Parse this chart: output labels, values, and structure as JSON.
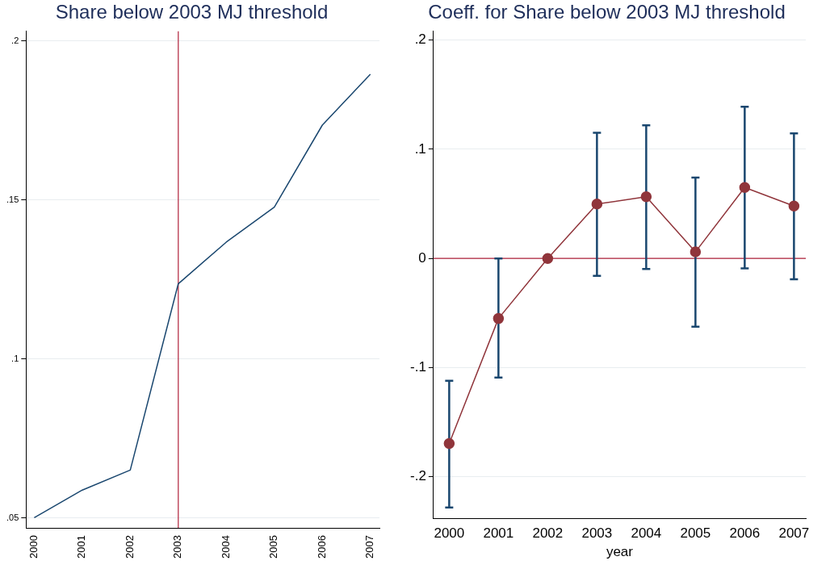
{
  "chart_data": [
    {
      "type": "line",
      "title": "Share below 2003 MJ threshold",
      "x": [
        2000,
        2001,
        2002,
        2003,
        2004,
        2005,
        2006,
        2007
      ],
      "series": [
        {
          "color": "#1a476f",
          "values": [
            0.05,
            0.0587,
            0.065,
            0.1236,
            0.1367,
            0.1477,
            0.1735,
            0.1895
          ]
        }
      ],
      "xlim": [
        1999.83,
        2007.19
      ],
      "xticks": [
        2000,
        2001,
        2002,
        2003,
        2004,
        2005,
        2006,
        2007
      ],
      "ylim": [
        0.0468,
        0.203
      ],
      "yticks": [
        {
          "value": 0.05,
          "label": ".05"
        },
        {
          "value": 0.1,
          "label": ".1"
        },
        {
          "value": 0.15,
          "label": ".15"
        },
        {
          "value": 0.2,
          "label": ".2"
        }
      ],
      "ref_lines": [
        {
          "axis": "x",
          "value": 2003,
          "color": "#b0203a"
        }
      ],
      "grid": "y",
      "marker": "none",
      "legend": false
    },
    {
      "type": "line",
      "title": "Coeff. for Share below 2003 MJ threshold",
      "xlabel": "year",
      "x": [
        2000,
        2001,
        2002,
        2003,
        2004,
        2005,
        2006,
        2007
      ],
      "series": [
        {
          "color": "#90353b",
          "values": [
            -0.1695,
            -0.055,
            0,
            0.0498,
            0.0565,
            0.006,
            0.065,
            0.048
          ],
          "errors": [
            [
              -0.228,
              -0.112
            ],
            [
              -0.109,
              0
            ],
            null,
            [
              -0.016,
              0.115
            ],
            [
              -0.0097,
              0.122
            ],
            [
              -0.0625,
              0.074
            ],
            [
              -0.009,
              0.139
            ],
            [
              -0.019,
              0.1145
            ]
          ]
        }
      ],
      "xlim": [
        1999.68,
        2007.24
      ],
      "xticks": [
        2000,
        2001,
        2002,
        2003,
        2004,
        2005,
        2006,
        2007
      ],
      "ylim": [
        -0.238,
        0.208
      ],
      "yticks": [
        {
          "value": -0.2,
          "label": "-.2"
        },
        {
          "value": -0.1,
          "label": "-.1"
        },
        {
          "value": 0,
          "label": "0"
        },
        {
          "value": 0.1,
          "label": ".1"
        },
        {
          "value": 0.2,
          "label": ".2"
        }
      ],
      "ref_lines": [
        {
          "axis": "y",
          "value": 0,
          "color": "#b0203a"
        }
      ],
      "grid": "y",
      "marker": "circle",
      "legend": false
    }
  ]
}
